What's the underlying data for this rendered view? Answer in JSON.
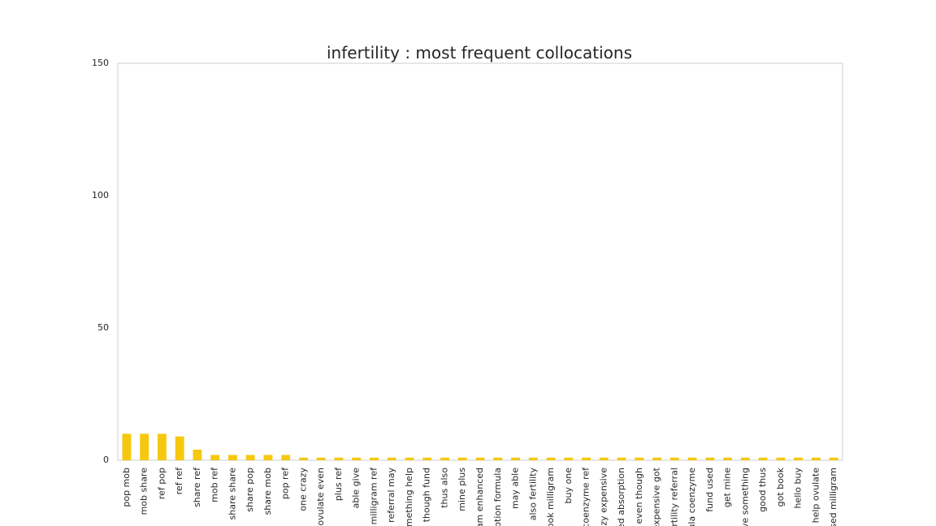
{
  "chart_data": {
    "type": "bar",
    "title": "infertility : most frequent collocations",
    "categories": [
      "pop mob",
      "mob share",
      "ref pop",
      "ref ref",
      "share ref",
      "mob ref",
      "share share",
      "share pop",
      "share mob",
      "pop ref",
      "one crazy",
      "ovulate even",
      "plus ref",
      "able give",
      "milligram ref",
      "referral may",
      "omething help",
      "though fund",
      "thus also",
      "mine plus",
      "ram enhanced",
      "orption formula",
      "may able",
      "also fertility",
      "book milligram",
      "buy one",
      "coenzyme ref",
      "razy expensive",
      "ced absorption",
      "even though",
      "expensive got",
      "fertility referral",
      "ula coenzyme",
      "fund used",
      "get mine",
      "ive something",
      "good thus",
      "got book",
      "hello buy",
      "help ovulate",
      "used milligram"
    ],
    "values": [
      10,
      10,
      10,
      9,
      4,
      2,
      2,
      2,
      2,
      2,
      1,
      1,
      1,
      1,
      1,
      1,
      1,
      1,
      1,
      1,
      1,
      1,
      1,
      1,
      1,
      1,
      1,
      1,
      1,
      1,
      1,
      1,
      1,
      1,
      1,
      1,
      1,
      1,
      1,
      1,
      1
    ],
    "color": "#f5c80f",
    "ylim": [
      0,
      150
    ],
    "yticks": [
      0,
      50,
      100,
      150
    ],
    "grid": false
  }
}
